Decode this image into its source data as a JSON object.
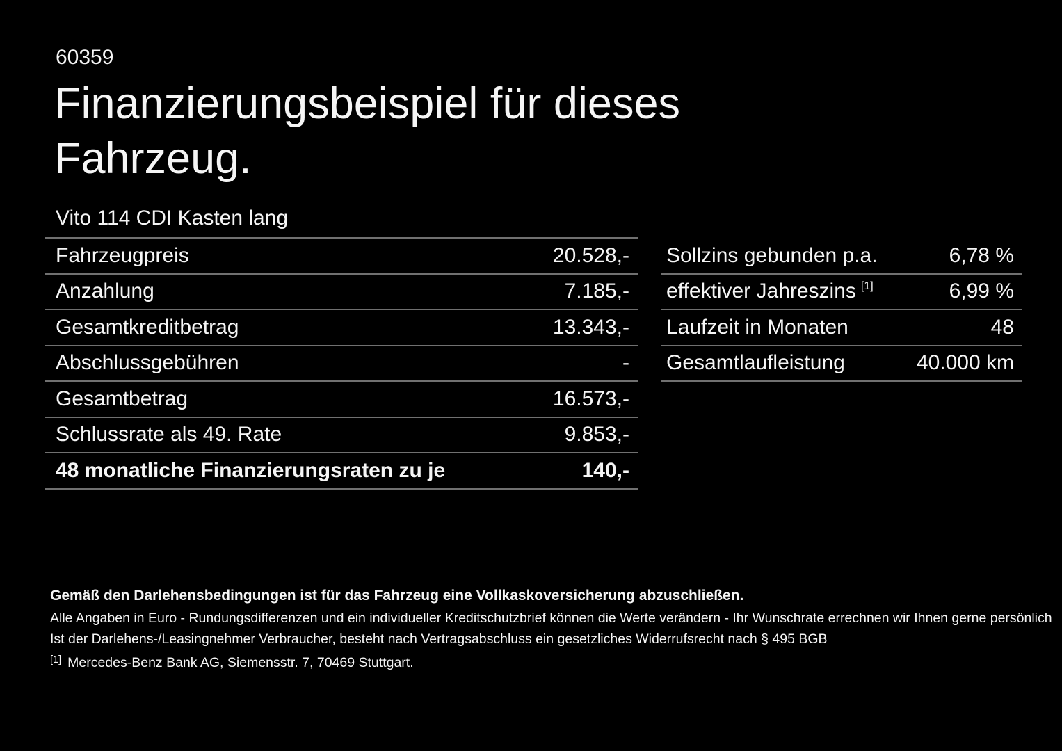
{
  "page": {
    "ref_number": "60359",
    "title_line1": "Finanzierungsbeispiel für dieses",
    "title_line2": "Fahrzeug.",
    "vehicle": "Vito 114 CDI Kasten lang"
  },
  "finance_table": {
    "rows": [
      {
        "label": "Fahrzeugpreis",
        "value": "20.528,-"
      },
      {
        "label": "Anzahlung",
        "value": "7.185,-"
      },
      {
        "label": "Gesamtkreditbetrag",
        "value": "13.343,-"
      },
      {
        "label": "Abschlussgebühren",
        "value": "-"
      },
      {
        "label": "Gesamtbetrag",
        "value": "16.573,-"
      },
      {
        "label": "Schlussrate als 49. Rate",
        "value": "9.853,-"
      },
      {
        "label": "48 monatliche Finanzierungsraten zu je",
        "value": "140,-"
      }
    ]
  },
  "conditions_table": {
    "rows": [
      {
        "label": "Sollzins gebunden p.a.",
        "sup": "",
        "value": "6,78 %"
      },
      {
        "label": "effektiver Jahreszins",
        "sup": "[1]",
        "value": "6,99 %"
      },
      {
        "label": "Laufzeit in Monaten",
        "sup": "",
        "value": "48"
      },
      {
        "label": "Gesamtlaufleistung",
        "sup": "",
        "value": "40.000 km"
      }
    ]
  },
  "footnotes": {
    "bold_note": "Gemäß den Darlehensbedingungen ist für das Fahrzeug eine Vollkaskoversicherung abzuschließen.",
    "note1": "Alle Angaben in Euro - Rundungsdifferenzen und ein individueller Kreditschutzbrief können die Werte verändern - Ihr Wunschrate errechnen wir Ihnen gerne persönlich",
    "note2": "Ist der Darlehens-/Leasingnehmer Verbraucher, besteht nach Vertragsabschluss ein gesetzliches Widerrufsrecht nach § 495 BGB",
    "ref_marker": "[1]",
    "ref_text": "Mercedes-Benz Bank AG, Siemensstr. 7, 70469 Stuttgart."
  },
  "colors": {
    "background": "#000000",
    "text": "#f5f5f5",
    "divider": "#707070"
  }
}
